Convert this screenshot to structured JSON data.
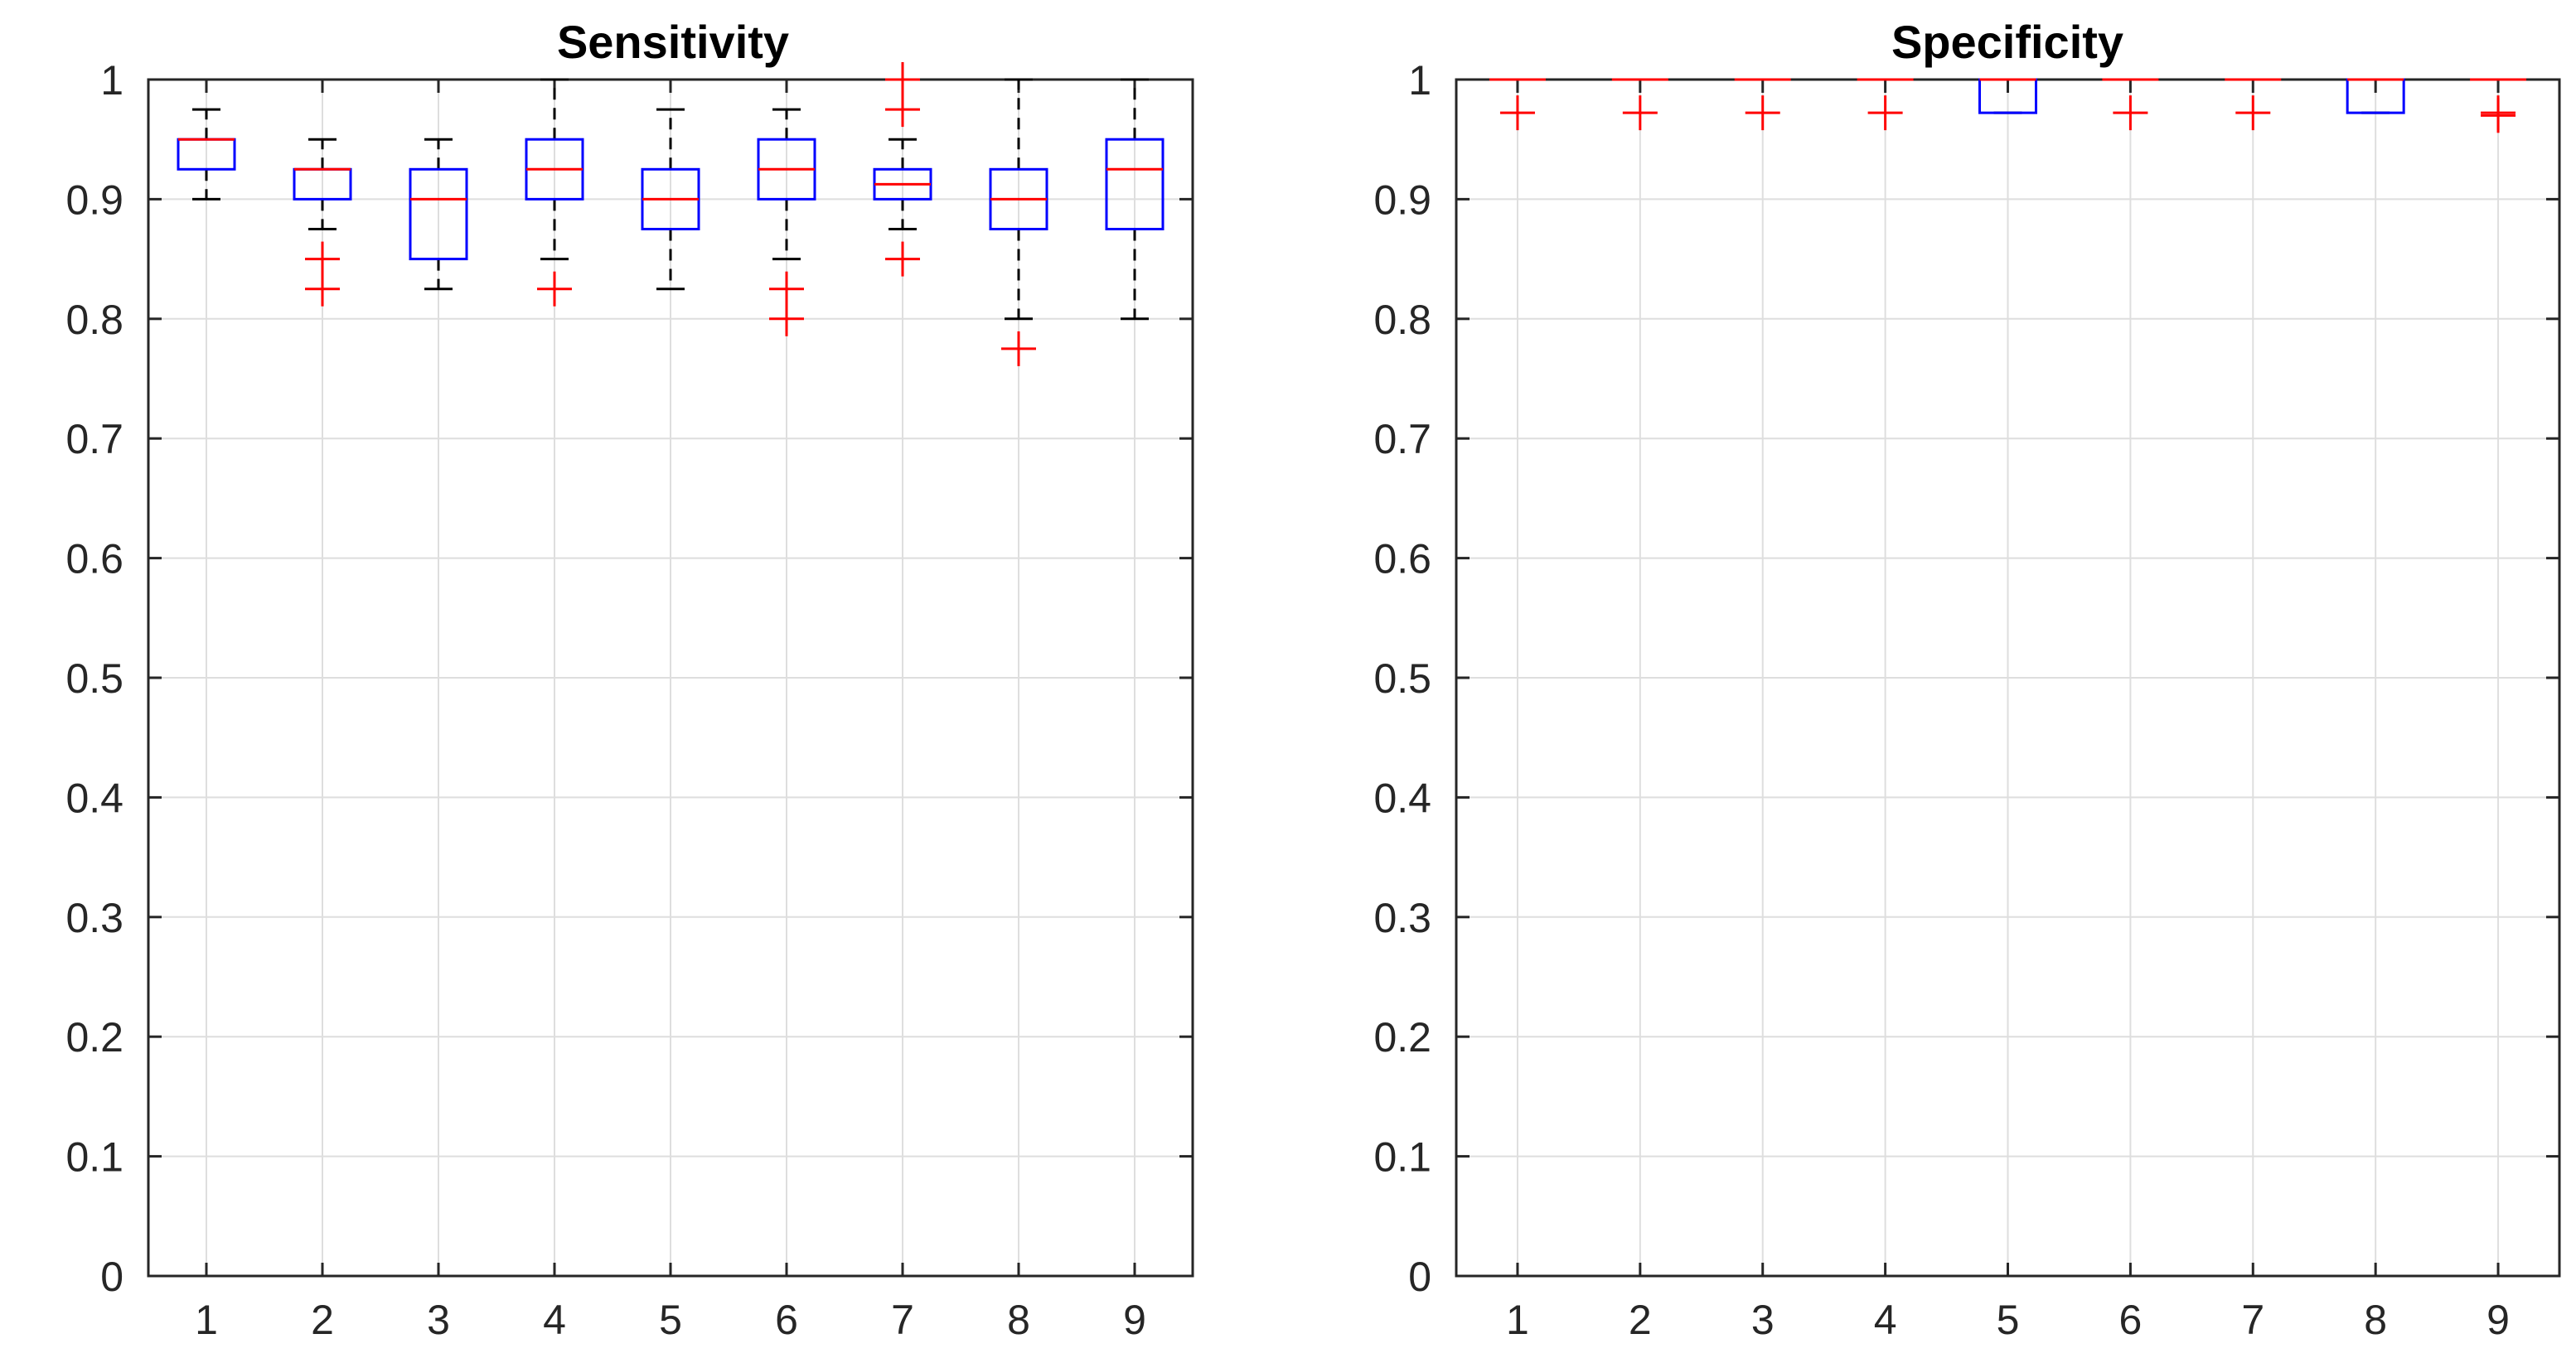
{
  "chart_data": [
    {
      "type": "box",
      "title": "Sensitivity",
      "xlabel": "",
      "ylabel": "",
      "categories": [
        "1",
        "2",
        "3",
        "4",
        "5",
        "6",
        "7",
        "8",
        "9"
      ],
      "ylim": [
        0,
        1
      ],
      "yticks": [
        "0",
        "0.1",
        "0.2",
        "0.3",
        "0.4",
        "0.5",
        "0.6",
        "0.7",
        "0.8",
        "0.9",
        "1"
      ],
      "grid": true,
      "boxes": [
        {
          "category": "1",
          "whisker_low": 0.9,
          "q1": 0.925,
          "median": 0.95,
          "q3": 0.95,
          "whisker_high": 0.975,
          "outliers": []
        },
        {
          "category": "2",
          "whisker_low": 0.875,
          "q1": 0.9,
          "median": 0.925,
          "q3": 0.925,
          "whisker_high": 0.95,
          "outliers": [
            0.85,
            0.825
          ]
        },
        {
          "category": "3",
          "whisker_low": 0.825,
          "q1": 0.85,
          "median": 0.9,
          "q3": 0.925,
          "whisker_high": 0.95,
          "outliers": []
        },
        {
          "category": "4",
          "whisker_low": 0.85,
          "q1": 0.9,
          "median": 0.925,
          "q3": 0.95,
          "whisker_high": 1.0,
          "outliers": [
            0.825
          ]
        },
        {
          "category": "5",
          "whisker_low": 0.825,
          "q1": 0.875,
          "median": 0.9,
          "q3": 0.925,
          "whisker_high": 0.975,
          "outliers": []
        },
        {
          "category": "6",
          "whisker_low": 0.85,
          "q1": 0.9,
          "median": 0.925,
          "q3": 0.95,
          "whisker_high": 0.975,
          "outliers": [
            0.825,
            0.8
          ]
        },
        {
          "category": "7",
          "whisker_low": 0.875,
          "q1": 0.9,
          "median": 0.9125,
          "q3": 0.925,
          "whisker_high": 0.95,
          "outliers": [
            1.0,
            0.975,
            0.85
          ]
        },
        {
          "category": "8",
          "whisker_low": 0.8,
          "q1": 0.875,
          "median": 0.9,
          "q3": 0.925,
          "whisker_high": 1.0,
          "outliers": [
            0.775
          ]
        },
        {
          "category": "9",
          "whisker_low": 0.8,
          "q1": 0.875,
          "median": 0.925,
          "q3": 0.95,
          "whisker_high": 1.0,
          "outliers": []
        }
      ]
    },
    {
      "type": "box",
      "title": "Specificity",
      "xlabel": "",
      "ylabel": "",
      "categories": [
        "1",
        "2",
        "3",
        "4",
        "5",
        "6",
        "7",
        "8",
        "9"
      ],
      "ylim": [
        0,
        1
      ],
      "yticks": [
        "0",
        "0.1",
        "0.2",
        "0.3",
        "0.4",
        "0.5",
        "0.6",
        "0.7",
        "0.8",
        "0.9",
        "1"
      ],
      "grid": true,
      "boxes": [
        {
          "category": "1",
          "whisker_low": 1.0,
          "q1": 1.0,
          "median": 1.0,
          "q3": 1.0,
          "whisker_high": 1.0,
          "outliers": [
            0.9722
          ]
        },
        {
          "category": "2",
          "whisker_low": 1.0,
          "q1": 1.0,
          "median": 1.0,
          "q3": 1.0,
          "whisker_high": 1.0,
          "outliers": [
            0.9722
          ]
        },
        {
          "category": "3",
          "whisker_low": 1.0,
          "q1": 1.0,
          "median": 1.0,
          "q3": 1.0,
          "whisker_high": 1.0,
          "outliers": [
            0.9722
          ]
        },
        {
          "category": "4",
          "whisker_low": 1.0,
          "q1": 1.0,
          "median": 1.0,
          "q3": 1.0,
          "whisker_high": 1.0,
          "outliers": [
            0.9722
          ]
        },
        {
          "category": "5",
          "whisker_low": 0.9722,
          "q1": 0.9722,
          "median": 1.0,
          "q3": 1.0,
          "whisker_high": 1.0,
          "outliers": []
        },
        {
          "category": "6",
          "whisker_low": 1.0,
          "q1": 1.0,
          "median": 1.0,
          "q3": 1.0,
          "whisker_high": 1.0,
          "outliers": [
            0.9722
          ]
        },
        {
          "category": "7",
          "whisker_low": 1.0,
          "q1": 1.0,
          "median": 1.0,
          "q3": 1.0,
          "whisker_high": 1.0,
          "outliers": [
            0.9722
          ]
        },
        {
          "category": "8",
          "whisker_low": 0.9722,
          "q1": 0.9722,
          "median": 1.0,
          "q3": 1.0,
          "whisker_high": 1.0,
          "outliers": []
        },
        {
          "category": "9",
          "whisker_low": 1.0,
          "q1": 1.0,
          "median": 1.0,
          "q3": 1.0,
          "whisker_high": 1.0,
          "outliers": [
            0.9722,
            0.97
          ]
        }
      ]
    }
  ],
  "colors": {
    "box": "#0000ff",
    "median": "#ff0000",
    "outlier": "#ff0000",
    "whisker": "#000000",
    "grid": "#dedede",
    "axis": "#262626"
  }
}
